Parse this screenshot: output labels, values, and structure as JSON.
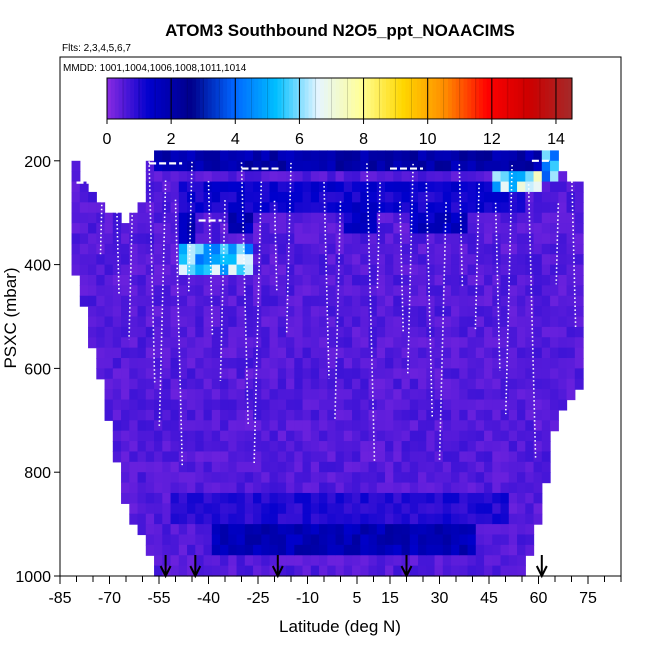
{
  "chart_data": {
    "type": "heatmap",
    "title": "ATOM3 Southbound N2O5_ppt_NOAACIMS",
    "subtitle_flights": "Flts: 2,3,4,5,6,7",
    "subtitle_dates": "MMDD: 1001,1004,1006,1008,1011,1014",
    "xlabel": "Latitude (deg N)",
    "ylabel": "PSXC (mbar)",
    "xlim": [
      -85,
      85
    ],
    "ylim": [
      1000,
      0
    ],
    "x_ticks": [
      -85,
      -70,
      -55,
      -40,
      -25,
      -10,
      5,
      15,
      30,
      45,
      60,
      75
    ],
    "x_tick_labels": [
      "-85",
      "-70",
      "-55",
      "-40",
      "-25",
      "-10",
      "5",
      "15",
      "30",
      "45",
      "60",
      "75"
    ],
    "y_ticks": [
      200,
      400,
      600,
      800,
      1000
    ],
    "y_tick_labels": [
      "200",
      "400",
      "600",
      "800",
      "1000"
    ],
    "colorbar": {
      "range": [
        0,
        14.5
      ],
      "ticks": [
        0,
        2,
        4,
        6,
        8,
        10,
        12,
        14
      ],
      "tick_labels": [
        "0",
        "2",
        "4",
        "6",
        "8",
        "10",
        "12",
        "14"
      ],
      "colors": [
        "#8a2be2",
        "#0000cd",
        "#00008b",
        "#0064ff",
        "#00bfff",
        "#e6f5ff",
        "#ffff99",
        "#ffd700",
        "#ff8c00",
        "#ff0000",
        "#cc0000",
        "#a52a2a"
      ]
    },
    "arrows_lat": [
      -53,
      -44,
      -19,
      20,
      61
    ],
    "background_value": 0.3,
    "curtain_extent": [
      {
        "lat": -80,
        "p_top": 210
      },
      {
        "lat": -75,
        "p_top": 260
      },
      {
        "lat": -70,
        "p_top": 300
      },
      {
        "lat": -65,
        "p_top": 320
      },
      {
        "lat": -60,
        "p_top": 270
      },
      {
        "lat": -57,
        "p_top": 180
      },
      {
        "lat": 65,
        "p_top": 180
      },
      {
        "lat": 70,
        "p_top": 250
      }
    ],
    "bottom_extent": [
      {
        "lat": -85,
        "p_bot": 290
      },
      {
        "lat": -75,
        "p_bot": 560
      },
      {
        "lat": -65,
        "p_bot": 860
      },
      {
        "lat": -55,
        "p_bot": 1000
      },
      {
        "lat": 55,
        "p_bot": 1000
      },
      {
        "lat": 60,
        "p_bot": 900
      },
      {
        "lat": 65,
        "p_bot": 700
      },
      {
        "lat": 72,
        "p_bot": 640
      }
    ],
    "features": [
      {
        "lat_min": -57,
        "lat_max": 60,
        "p_min": 180,
        "p_max": 225,
        "value": 2.0
      },
      {
        "lat_min": 47,
        "lat_max": 62,
        "p_min": 225,
        "p_max": 260,
        "value": 6.0
      },
      {
        "lat_min": 62,
        "lat_max": 66,
        "p_min": 180,
        "p_max": 245,
        "value": 5.0
      },
      {
        "lat_min": -48,
        "lat_max": -27,
        "p_min": 355,
        "p_max": 410,
        "value": 5.5
      },
      {
        "lat_min": -48,
        "lat_max": -43,
        "p_min": 310,
        "p_max": 355,
        "value": 1.8
      },
      {
        "lat_min": -35,
        "lat_max": -27,
        "p_min": 300,
        "p_max": 340,
        "value": 1.8
      },
      {
        "lat_min": 20,
        "lat_max": 38,
        "p_min": 300,
        "p_max": 340,
        "value": 1.5
      },
      {
        "lat_min": 0,
        "lat_max": 10,
        "p_min": 290,
        "p_max": 330,
        "value": 1.4
      },
      {
        "lat_min": -40,
        "lat_max": 40,
        "p_min": 900,
        "p_max": 950,
        "value": 1.8
      },
      {
        "lat_min": -52,
        "lat_max": 50,
        "p_min": 845,
        "p_max": 900,
        "value": 1.0
      },
      {
        "lat_min": -50,
        "lat_max": 55,
        "p_min": 250,
        "p_max": 300,
        "value": 1.2
      }
    ]
  }
}
